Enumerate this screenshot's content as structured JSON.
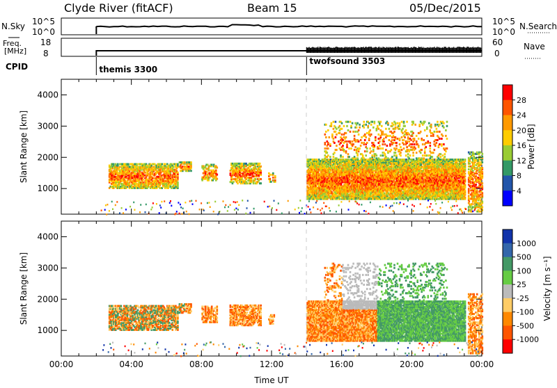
{
  "header": {
    "station": "Clyde River (fitACF)",
    "beam": "Beam 15",
    "date": "05/Dec/2015"
  },
  "summary_panels": {
    "nsky": {
      "label": "N.Sky",
      "ticks": [
        "10^5",
        "10^0"
      ],
      "right_label": "N.Search",
      "right_ticks": [
        "10^5",
        "10^0"
      ]
    },
    "freq": {
      "label_line1": "Freq.",
      "label_line2": "[MHz]",
      "ticks": [
        "18",
        "8"
      ],
      "right_label": "Nave",
      "right_ticks": [
        "60",
        "0"
      ]
    },
    "cpid": {
      "label": "CPID",
      "modes": [
        {
          "name": "themis 3300",
          "start_hour": 2.0
        },
        {
          "name": "twofsound 3503",
          "start_hour": 14.0
        }
      ]
    }
  },
  "chart_data": [
    {
      "type": "heatmap",
      "title": "",
      "ylabel": "Slant Range [km]",
      "xlim_hours": [
        0,
        24
      ],
      "ylim": [
        180,
        4500
      ],
      "y_ticks": [
        1000,
        2000,
        3000,
        4000
      ],
      "colorbar_label": "Power [dB]",
      "colorbar_ticks": [
        "28",
        "24",
        "20",
        "16",
        "12",
        "8",
        "4"
      ],
      "colorbar_colors": [
        "#ff0000",
        "#ff5500",
        "#ff9900",
        "#ffcc00",
        "#99cc33",
        "#339966",
        "#2255aa",
        "#0000ff"
      ],
      "data_gap_hours": [
        [
          0,
          2.0
        ]
      ]
    },
    {
      "type": "heatmap",
      "title": "",
      "ylabel": "Slant Range [km]",
      "xlabel": "Time UT",
      "xlim_hours": [
        0,
        24
      ],
      "ylim": [
        180,
        4500
      ],
      "y_ticks": [
        1000,
        2000,
        3000,
        4000
      ],
      "x_ticks": [
        "00:00",
        "04:00",
        "08:00",
        "12:00",
        "16:00",
        "20:00",
        "00:00"
      ],
      "colorbar_label": "Velocity [m s⁻¹]",
      "colorbar_ticks": [
        "1000",
        "500",
        "100",
        "25",
        "-25",
        "-100",
        "-500",
        "-1000"
      ],
      "colorbar_colors": [
        "#1133aa",
        "#3366aa",
        "#449966",
        "#66cc44",
        "#bbbbbb",
        "#ffcc66",
        "#ff8800",
        "#ff5500",
        "#ff0000"
      ]
    }
  ]
}
